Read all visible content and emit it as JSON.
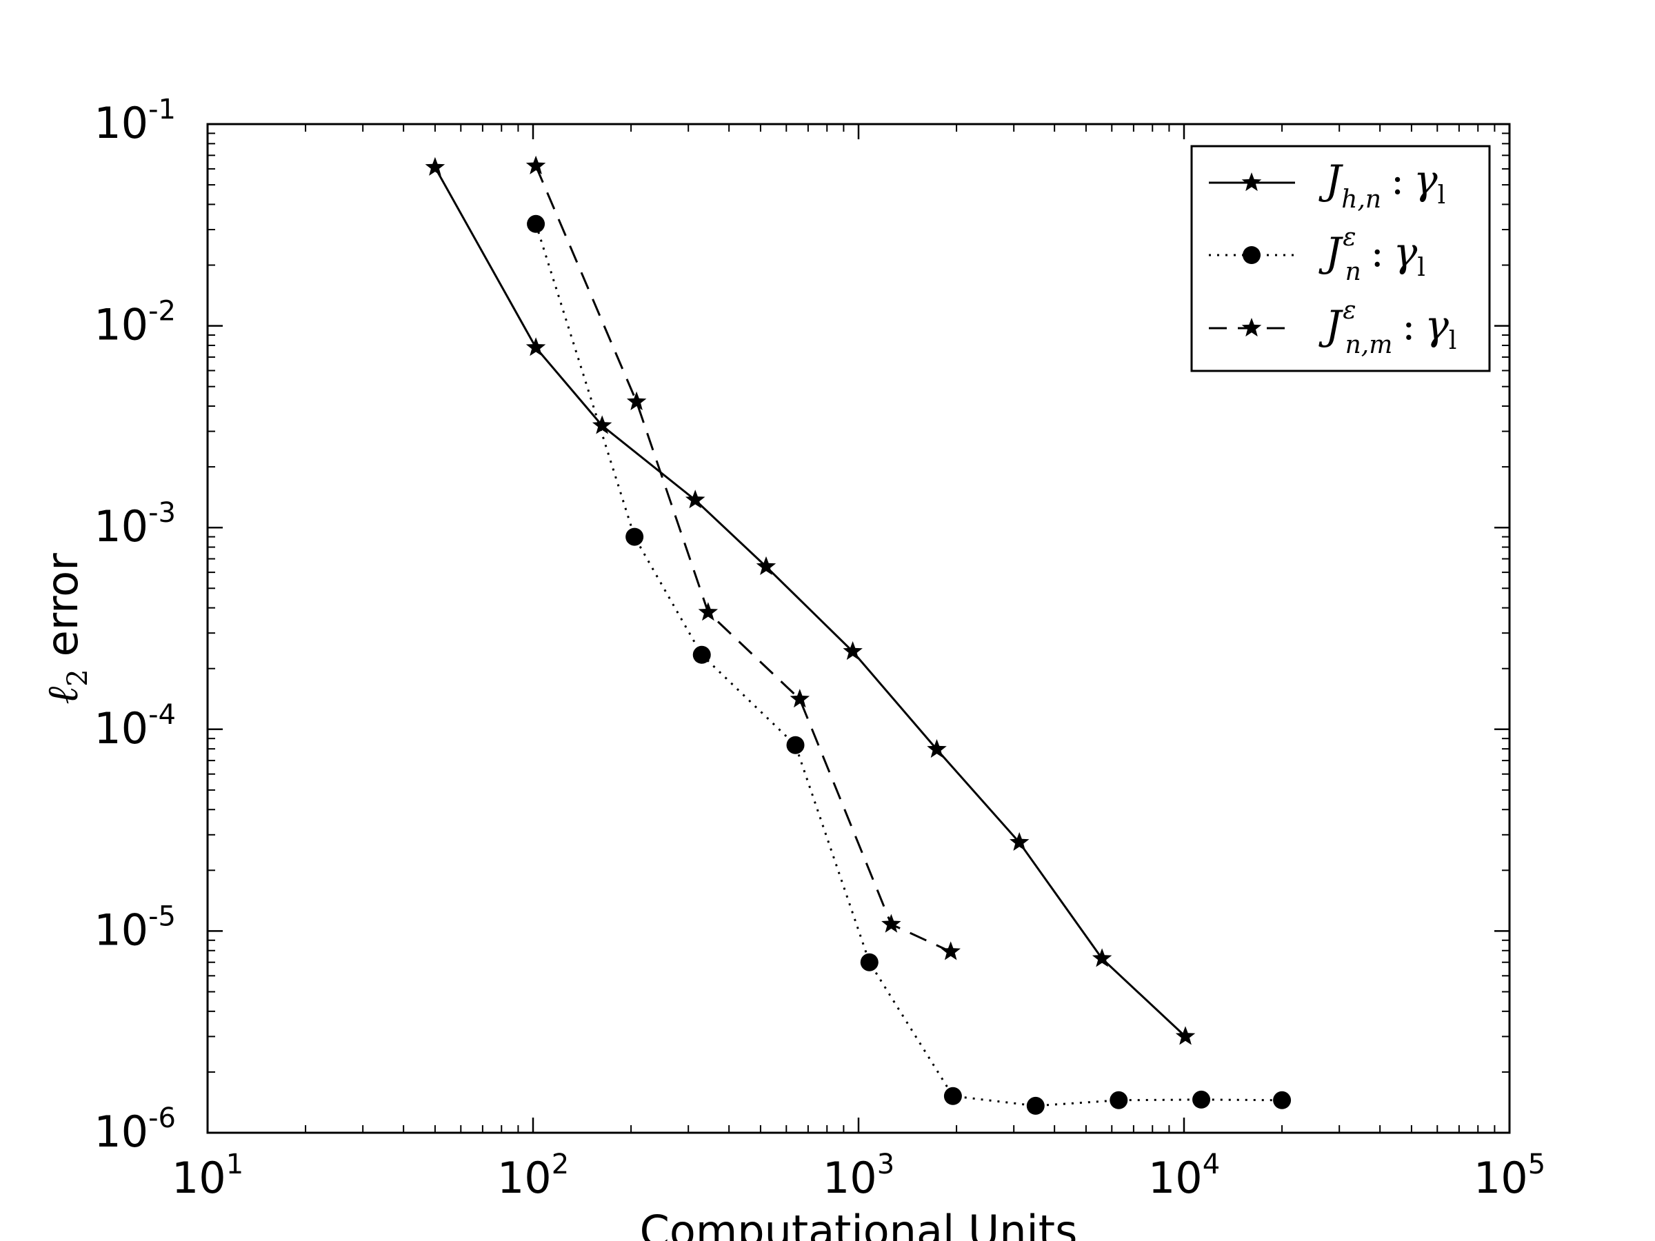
{
  "chart_data": {
    "type": "line",
    "xscale": "log",
    "yscale": "log",
    "xlim": [
      10,
      100000
    ],
    "ylim": [
      1e-06,
      0.1
    ],
    "xlabel": "Computational Units",
    "ylabel": {
      "symbol": "ℓ",
      "subscript": "2",
      "text": "error"
    },
    "x_ticks": [
      {
        "base": "10",
        "exp": "1"
      },
      {
        "base": "10",
        "exp": "2"
      },
      {
        "base": "10",
        "exp": "3"
      },
      {
        "base": "10",
        "exp": "4"
      },
      {
        "base": "10",
        "exp": "5"
      }
    ],
    "y_ticks": [
      {
        "base": "10",
        "exp": "-6"
      },
      {
        "base": "10",
        "exp": "-5"
      },
      {
        "base": "10",
        "exp": "-4"
      },
      {
        "base": "10",
        "exp": "-3"
      },
      {
        "base": "10",
        "exp": "-2"
      },
      {
        "base": "10",
        "exp": "-1"
      }
    ],
    "legend_position": "upper right",
    "series": [
      {
        "id": "J_hn",
        "label": {
          "main": "J",
          "sub": "h,n",
          "sup": "",
          "gamma_sub": "l"
        },
        "line_style": "solid",
        "marker": "star",
        "color": "#000000",
        "x": [
          50,
          102,
          163,
          315,
          520,
          960,
          1740,
          3120,
          5600,
          10100
        ],
        "y": [
          0.061,
          0.0078,
          0.0032,
          0.00137,
          0.00064,
          0.000243,
          7.95e-05,
          2.75e-05,
          7.3e-06,
          3e-06
        ]
      },
      {
        "id": "J_eps_n",
        "label": {
          "main": "J",
          "sub": "n",
          "sup": "ε",
          "gamma_sub": "l"
        },
        "line_style": "dotted",
        "marker": "circle",
        "color": "#000000",
        "x": [
          102,
          205,
          330,
          640,
          1080,
          1950,
          3500,
          6300,
          11300,
          20000
        ],
        "y": [
          0.032,
          0.0009,
          0.000234,
          8.35e-05,
          7e-06,
          1.52e-06,
          1.36e-06,
          1.45e-06,
          1.46e-06,
          1.45e-06
        ]
      },
      {
        "id": "J_eps_nm",
        "label": {
          "main": "J",
          "sub": "n,m",
          "sup": "ε",
          "gamma_sub": "l"
        },
        "line_style": "dashed",
        "marker": "star",
        "color": "#000000",
        "x": [
          102,
          208,
          345,
          660,
          1260,
          1920
        ],
        "y": [
          0.062,
          0.0042,
          0.00038,
          0.000141,
          1.08e-05,
          7.9e-06
        ]
      }
    ]
  }
}
